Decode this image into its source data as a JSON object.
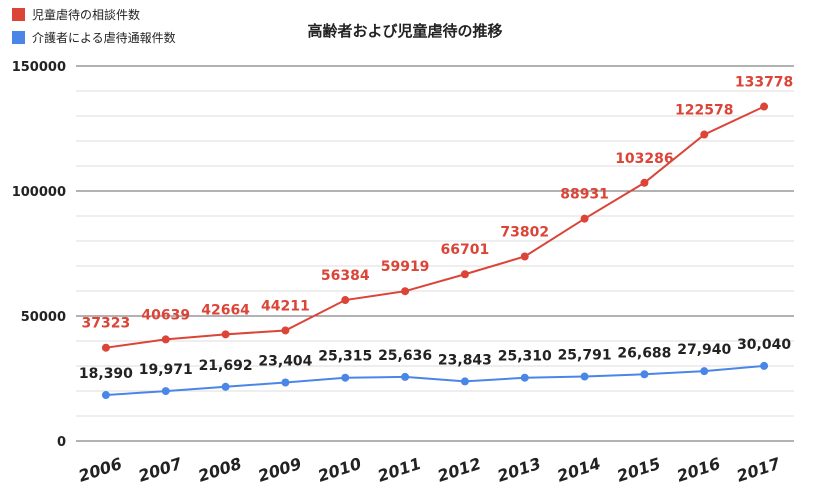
{
  "chart_data": {
    "type": "line",
    "title": "高齢者および児童虐待の推移",
    "xlabel": "",
    "ylabel": "",
    "ylim": [
      0,
      150000
    ],
    "yticks": [
      0,
      50000,
      100000,
      150000
    ],
    "ytick_labels": [
      "0",
      "50000",
      "100000",
      "150000"
    ],
    "categories": [
      "2006",
      "2007",
      "2008",
      "2009",
      "2010",
      "2011",
      "2012",
      "2013",
      "2014",
      "2015",
      "2016",
      "2017"
    ],
    "legend_position": "top-left",
    "series": [
      {
        "name": "児童虐待の相談件数",
        "color": "#db4437",
        "values": [
          37323,
          40639,
          42664,
          44211,
          56384,
          59919,
          66701,
          73802,
          88931,
          103286,
          122578,
          133778
        ],
        "labels": [
          "37323",
          "40639",
          "42664",
          "44211",
          "56384",
          "59919",
          "66701",
          "73802",
          "88931",
          "103286",
          "122578",
          "133778"
        ]
      },
      {
        "name": "介護者による虐待通報件数",
        "color": "#4a86e8",
        "values": [
          18390,
          19971,
          21692,
          23404,
          25315,
          25636,
          23843,
          25310,
          25791,
          26688,
          27940,
          30040
        ],
        "labels": [
          "18,390",
          "19,971",
          "21,692",
          "23,404",
          "25,315",
          "25,636",
          "23,843",
          "25,310",
          "25,791",
          "26,688",
          "27,940",
          "30,040"
        ]
      }
    ]
  }
}
